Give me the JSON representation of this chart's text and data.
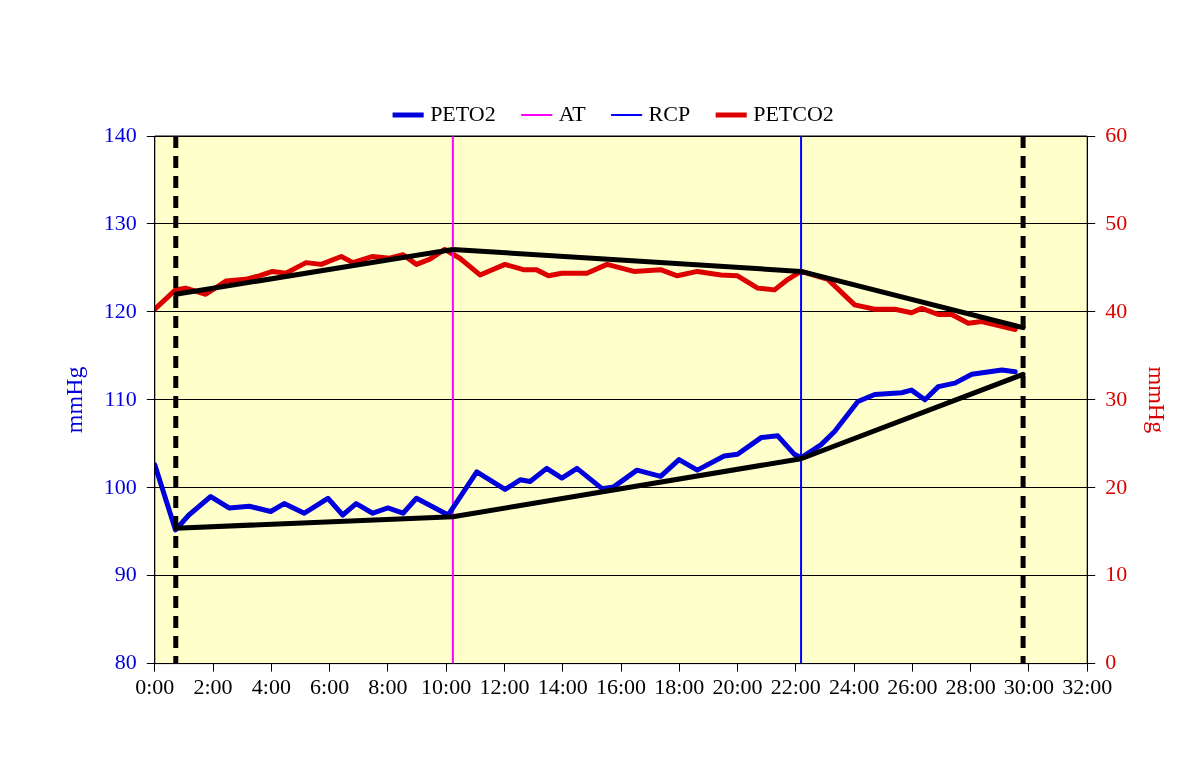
{
  "chart_data": {
    "type": "line",
    "xlabel": null,
    "ylabel": "mmHg",
    "y2label": "mmHg",
    "xlim": [
      0,
      32
    ],
    "xticks": [
      {
        "value": 0,
        "label": "0:00"
      },
      {
        "value": 2,
        "label": "2:00"
      },
      {
        "value": 4,
        "label": "4:00"
      },
      {
        "value": 6,
        "label": "6:00"
      },
      {
        "value": 8,
        "label": "8:00"
      },
      {
        "value": 10,
        "label": "10:00"
      },
      {
        "value": 12,
        "label": "12:00"
      },
      {
        "value": 14,
        "label": "14:00"
      },
      {
        "value": 16,
        "label": "16:00"
      },
      {
        "value": 18,
        "label": "18:00"
      },
      {
        "value": 20,
        "label": "20:00"
      },
      {
        "value": 22,
        "label": "22:00"
      },
      {
        "value": 24,
        "label": "24:00"
      },
      {
        "value": 26,
        "label": "26:00"
      },
      {
        "value": 28,
        "label": "28:00"
      },
      {
        "value": 30,
        "label": "30:00"
      },
      {
        "value": 32,
        "label": "32:00"
      }
    ],
    "ylim": [
      80,
      140
    ],
    "yticks": [
      80,
      90,
      100,
      110,
      120,
      130,
      140
    ],
    "y2lim": [
      0,
      60
    ],
    "y2ticks": [
      0,
      10,
      20,
      30,
      40,
      50,
      60
    ],
    "grid": "y",
    "legend": "top",
    "marker": "none",
    "series": [
      {
        "name": "PETO2",
        "color": "#0000dd",
        "x": [
          0,
          0.71,
          1.17,
          1.92,
          2.55,
          3.24,
          3.98,
          4.44,
          5.13,
          5.94,
          6.45,
          6.91,
          7.48,
          8.0,
          8.52,
          8.98,
          10.07,
          11.05,
          12.02,
          12.54,
          12.88,
          13.45,
          13.97,
          14.49,
          15.35,
          15.75,
          16.55,
          17.36,
          17.99,
          18.62,
          19.54,
          20.0,
          20.81,
          21.38,
          21.95,
          22.18,
          22.87,
          23.33,
          24.13,
          24.71,
          25.63,
          25.97,
          26.43,
          26.89,
          27.46,
          28.04,
          29.07,
          29.53
        ],
        "values": [
          102.6,
          95.2,
          96.9,
          99.0,
          97.7,
          97.9,
          97.3,
          98.2,
          97.1,
          98.8,
          96.9,
          98.2,
          97.1,
          97.7,
          97.1,
          98.8,
          96.9,
          101.8,
          99.8,
          100.9,
          100.7,
          102.2,
          101.1,
          102.2,
          99.9,
          100.1,
          102.0,
          101.3,
          103.2,
          102.0,
          103.6,
          103.8,
          105.7,
          105.9,
          103.8,
          103.4,
          104.9,
          106.4,
          109.8,
          110.6,
          110.8,
          111.1,
          110.0,
          111.5,
          111.9,
          112.9,
          113.4,
          113.2
        ]
      },
      {
        "name": "AT",
        "color": "#ff00ff",
        "x": [
          10.23,
          10.23
        ],
        "values": [
          80,
          140
        ]
      },
      {
        "name": "RCP",
        "color": "#0000ff",
        "x": [
          22.18,
          22.18
        ],
        "values": [
          80,
          140
        ]
      },
      {
        "name": "PETCO2",
        "color": "#dd0000",
        "axis": "y2",
        "x": [
          0,
          0.71,
          1.06,
          1.75,
          2.44,
          3.12,
          3.58,
          4.04,
          4.5,
          5.19,
          5.71,
          6.4,
          6.8,
          7.48,
          8.06,
          8.52,
          8.98,
          9.44,
          9.95,
          10.47,
          11.16,
          12.02,
          12.65,
          13.1,
          13.51,
          13.97,
          14.83,
          15.52,
          16.44,
          17.36,
          17.93,
          18.62,
          19.43,
          20.0,
          20.69,
          21.27,
          21.73,
          22.18,
          23.1,
          24.02,
          24.71,
          25.4,
          25.97,
          26.32,
          26.89,
          27.35,
          27.92,
          28.38,
          29.53
        ],
        "values": [
          40.3,
          42.5,
          42.7,
          42.0,
          43.5,
          43.7,
          44.1,
          44.6,
          44.4,
          45.6,
          45.4,
          46.3,
          45.6,
          46.3,
          46.1,
          46.5,
          45.4,
          46.0,
          47.1,
          46.1,
          44.2,
          45.4,
          44.8,
          44.8,
          44.1,
          44.4,
          44.4,
          45.4,
          44.6,
          44.8,
          44.1,
          44.6,
          44.2,
          44.1,
          42.7,
          42.5,
          43.7,
          44.6,
          43.7,
          40.8,
          40.3,
          40.3,
          39.9,
          40.4,
          39.7,
          39.7,
          38.7,
          38.9,
          38.0
        ]
      },
      {
        "color": "#000000",
        "x": [
          0.72,
          10.23,
          22.18,
          29.8
        ],
        "values": [
          95.4,
          96.7,
          103.3,
          112.9
        ]
      },
      {
        "color": "#000000",
        "axis": "y2",
        "x": [
          0.72,
          10.23,
          22.18,
          29.8
        ],
        "values": [
          42.0,
          47.1,
          44.6,
          38.2
        ]
      }
    ],
    "ref_lines": [
      {
        "axis": "x",
        "value": 0.72,
        "color": "#000000",
        "line_style": "dashed"
      },
      {
        "axis": "x",
        "value": 29.8,
        "color": "#000000",
        "line_style": "dashed"
      }
    ]
  }
}
